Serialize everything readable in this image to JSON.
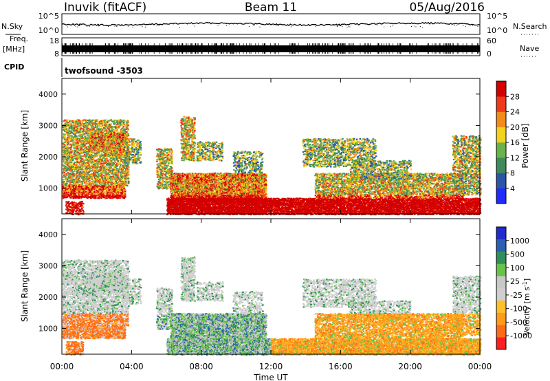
{
  "header": {
    "station": "Inuvik (fitACF)",
    "beam": "Beam 11",
    "date": "05/Aug/2016"
  },
  "top_panels": {
    "nsky_label": "N.Sky",
    "nsky_ticks": [
      "10^5",
      "10^0"
    ],
    "nsearch_label": "N.Search",
    "nsearch_ticks": [
      "10^5",
      "10^0"
    ],
    "freq_label": "Freq.",
    "freq_unit": "[MHz]",
    "freq_ticks": [
      "18",
      "8"
    ],
    "nave_label": "Nave",
    "nave_ticks": [
      "60",
      "0"
    ],
    "cpid_label": "CPID",
    "cpid_value": "twofsound -3503"
  },
  "colors": {
    "power": [
      "#1f2bff",
      "#2b55a8",
      "#3f8a5a",
      "#6cb24a",
      "#f2d21a",
      "#f28b1a",
      "#ef3a1a",
      "#d40000"
    ],
    "velocity": [
      "#ff1e1e",
      "#ff6a1a",
      "#ff9a1a",
      "#ffbe2a",
      "#cfcfcf",
      "#c8c8c8",
      "#6ac24a",
      "#2f8f5a",
      "#2a5fb2",
      "#1f2bcf"
    ]
  },
  "chart_data": [
    {
      "type": "heatmap",
      "name": "power",
      "ylabel": "Slant Range [km]",
      "xlabel": "Time UT",
      "x_ticks": [
        "00:00",
        "04:00",
        "08:00",
        "12:00",
        "16:00",
        "20:00",
        "00:00"
      ],
      "xlim_hours": [
        0,
        24
      ],
      "y_ticks": [
        "1000",
        "2000",
        "3000",
        "4000"
      ],
      "ylim_km": [
        180,
        4500
      ],
      "colorbar_label": "Power [dB]",
      "colorbar_ticks": [
        "4",
        "8",
        "12",
        "16",
        "20",
        "24",
        "28"
      ],
      "colorbar_range": [
        0,
        30
      ]
    },
    {
      "type": "heatmap",
      "name": "velocity",
      "ylabel": "Slant Range [km]",
      "xlabel": "Time UT",
      "x_ticks": [
        "00:00",
        "04:00",
        "08:00",
        "12:00",
        "16:00",
        "20:00",
        "00:00"
      ],
      "xlim_hours": [
        0,
        24
      ],
      "y_ticks": [
        "1000",
        "2000",
        "3000",
        "4000"
      ],
      "ylim_km": [
        180,
        4500
      ],
      "colorbar_label": "Velocity [m s",
      "colorbar_unit_sup": "-1",
      "colorbar_unit_close": "]",
      "colorbar_ticks": [
        "1000",
        "500",
        "100",
        "25",
        "-25",
        "-100",
        "-500",
        "-1000"
      ]
    }
  ]
}
